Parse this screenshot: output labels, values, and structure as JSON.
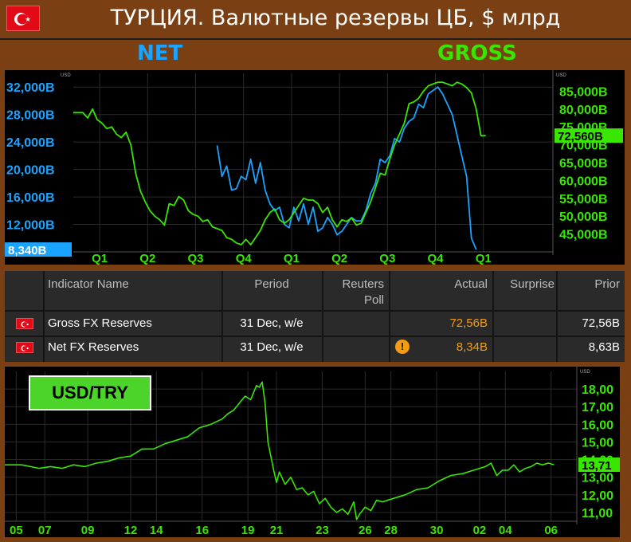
{
  "header": {
    "title": "ТУРЦИЯ. Валютные резервы ЦБ, $ млрд",
    "legend_net": "NET",
    "legend_gross": "GROSS",
    "flag_icon": "turkey-flag-icon"
  },
  "colors": {
    "net": "#1aa3ff",
    "gross": "#39e600",
    "usdtry": "#39e600",
    "actual": "#f39c12",
    "background": "#7a3f12"
  },
  "chart_data": [
    {
      "type": "line",
      "title": "ТУРЦИЯ. Валютные резервы ЦБ, $ млрд",
      "units_label": "USD",
      "x_tick_labels": [
        "Q1",
        "Q2",
        "Q3",
        "Q4",
        "Q1",
        "Q2",
        "Q3",
        "Q4",
        "Q1"
      ],
      "x_range": [
        0,
        100
      ],
      "x_ticks": [
        5.5,
        15.5,
        25.5,
        35.5,
        45.5,
        55.5,
        65.5,
        75.5,
        85.5
      ],
      "left_axis": {
        "ylim": [
          8000,
          34000
        ],
        "tick_values": [
          12000,
          16000,
          20000,
          24000,
          28000,
          32000
        ],
        "tick_labels": [
          "12,000B",
          "16,000B",
          "20,000B",
          "24,000B",
          "28,000B",
          "32,000B"
        ],
        "last_value_label": "8,340B",
        "last_value": 8340
      },
      "right_axis": {
        "ylim": [
          40000,
          90000
        ],
        "tick_values": [
          45000,
          50000,
          55000,
          60000,
          65000,
          70000,
          75000,
          80000,
          85000
        ],
        "tick_labels": [
          "45,000B",
          "50,000B",
          "55,000B",
          "60,000B",
          "65,000B",
          "70,000B",
          "75,000B",
          "80,000B",
          "85,000B"
        ],
        "last_value_label": "72,560B",
        "last_value": 72560
      },
      "series": [
        {
          "name": "NET",
          "axis": "left",
          "color": "#1aa3ff",
          "x": [
            30,
            31,
            32,
            33,
            34,
            35,
            36,
            37,
            38,
            39,
            40,
            41,
            42,
            43,
            44,
            45,
            46,
            47,
            48,
            49,
            50,
            51,
            52,
            53,
            54,
            55,
            56,
            57,
            58,
            59,
            60,
            61,
            62,
            63,
            64,
            65,
            66,
            67,
            68,
            69,
            70,
            71,
            72,
            73,
            74,
            75,
            76,
            77,
            78,
            79,
            80,
            81,
            82,
            83,
            84
          ],
          "y": [
            23500,
            19000,
            20500,
            17000,
            17200,
            19000,
            18500,
            21500,
            18000,
            21000,
            17000,
            15000,
            14000,
            14500,
            12000,
            11500,
            14500,
            12500,
            15000,
            12000,
            14500,
            11000,
            11500,
            13000,
            12000,
            10500,
            11000,
            12000,
            13000,
            12500,
            12500,
            14000,
            16500,
            18000,
            21500,
            21000,
            22000,
            24500,
            24000,
            26000,
            27000,
            27500,
            29500,
            29000,
            31000,
            31500,
            32000,
            31000,
            29500,
            28000,
            25000,
            22000,
            19000,
            10000,
            8340
          ]
        },
        {
          "name": "GROSS",
          "axis": "right",
          "color": "#39e600",
          "x": [
            0,
            2,
            3,
            4,
            5,
            6,
            7,
            8,
            9,
            10,
            11,
            12,
            13,
            14,
            15,
            16,
            17,
            18,
            19,
            20,
            21,
            22,
            23,
            24,
            25,
            26,
            27,
            28,
            29,
            30,
            31,
            32,
            33,
            34,
            35,
            36,
            37,
            38,
            39,
            40,
            41,
            42,
            43,
            44,
            45,
            46,
            47,
            48,
            49,
            50,
            51,
            52,
            53,
            54,
            55,
            56,
            57,
            58,
            59,
            60,
            61,
            62,
            63,
            64,
            65,
            66,
            67,
            68,
            69,
            70,
            71,
            72,
            73,
            74,
            75,
            76,
            77,
            78,
            79,
            80,
            81,
            82,
            83,
            84,
            85,
            86
          ],
          "y": [
            79000,
            79000,
            77500,
            80000,
            77000,
            76000,
            74500,
            75000,
            73000,
            72000,
            73500,
            70000,
            62000,
            57000,
            54000,
            51500,
            50000,
            49000,
            47500,
            53500,
            53000,
            55500,
            54500,
            51500,
            50500,
            50000,
            48500,
            49000,
            47000,
            46500,
            46000,
            44000,
            43500,
            42500,
            42000,
            43500,
            42000,
            44000,
            46000,
            49000,
            51000,
            52000,
            49000,
            48000,
            49000,
            51000,
            53000,
            55000,
            54500,
            54500,
            53500,
            51000,
            52500,
            49000,
            47000,
            49000,
            48500,
            49500,
            47500,
            48000,
            51000,
            54000,
            58000,
            62000,
            61500,
            66000,
            70000,
            73000,
            76000,
            81500,
            82000,
            83000,
            85000,
            86500,
            87000,
            87500,
            87500,
            87000,
            86500,
            87500,
            87000,
            86000,
            84500,
            80000,
            72500,
            72560
          ]
        }
      ]
    },
    {
      "type": "line",
      "title": "USD/TRY",
      "units_label": "USD",
      "x_tick_labels": [
        "05",
        "07",
        "09",
        "12",
        "14",
        "16",
        "19",
        "21",
        "23",
        "26",
        "28",
        "30",
        "02",
        "04",
        "06"
      ],
      "x_range": [
        0,
        100
      ],
      "x_ticks": [
        2,
        7,
        14.5,
        22,
        26.5,
        34.5,
        42.5,
        47.5,
        55.5,
        63,
        67.5,
        75.5,
        83,
        87.5,
        95.5
      ],
      "ylim": [
        10.5,
        19
      ],
      "tick_values": [
        11,
        12,
        13,
        14,
        15,
        16,
        17,
        18
      ],
      "tick_labels": [
        "11,00",
        "12,00",
        "13,00",
        "14,00",
        "15,00",
        "16,00",
        "17,00",
        "18,00"
      ],
      "last_value_label": "13,71",
      "last_value": 13.71,
      "series": [
        {
          "name": "USD/TRY",
          "color": "#39e600",
          "x": [
            0,
            3,
            6,
            8,
            10,
            12,
            14,
            16,
            18,
            20,
            22,
            24,
            26,
            28,
            30,
            32,
            34,
            36,
            38,
            39,
            40,
            41,
            42,
            43,
            44,
            44.5,
            45,
            45.5,
            46,
            47,
            47.5,
            48,
            49,
            50,
            51,
            52,
            53,
            54,
            55,
            56,
            57,
            58,
            59,
            60,
            61,
            61.5,
            62,
            63,
            64,
            65,
            66,
            68,
            70,
            72,
            74,
            76,
            78,
            80,
            82,
            83,
            84,
            85,
            86,
            87,
            88,
            89,
            90,
            91,
            92,
            93,
            94,
            95,
            96
          ],
          "y": [
            13.7,
            13.7,
            13.5,
            13.6,
            13.5,
            13.7,
            13.6,
            13.8,
            13.9,
            14.1,
            14.2,
            14.6,
            14.6,
            14.9,
            15.1,
            15.3,
            15.8,
            16.0,
            16.3,
            16.6,
            16.8,
            17.2,
            17.6,
            17.4,
            18.2,
            18.1,
            18.4,
            17.2,
            15.0,
            13.4,
            12.7,
            13.3,
            12.6,
            13.0,
            12.3,
            12.4,
            12.0,
            12.2,
            11.5,
            11.8,
            11.3,
            11.0,
            11.2,
            10.9,
            11.6,
            10.6,
            10.9,
            11.3,
            11.1,
            11.7,
            11.6,
            11.8,
            12.0,
            12.3,
            12.4,
            12.8,
            13.1,
            13.2,
            13.4,
            13.5,
            13.6,
            13.8,
            13.1,
            13.4,
            13.4,
            13.7,
            13.3,
            13.5,
            13.6,
            13.8,
            13.7,
            13.8,
            13.71
          ]
        }
      ]
    }
  ],
  "table": {
    "headers": {
      "indicator": "Indicator Name",
      "period": "Period",
      "reuters_poll": "Reuters\nPoll",
      "actual": "Actual",
      "surprise": "Surprise",
      "prior": "Prior"
    },
    "rows": [
      {
        "indicator": "Gross FX Reserves",
        "period": "31 Dec, w/e",
        "reuters_poll": "",
        "actual": "72,56B",
        "surprise": "",
        "prior": "72,56B",
        "warning": false
      },
      {
        "indicator": "Net FX Reserves",
        "period": "31 Dec, w/e",
        "reuters_poll": "",
        "actual": "8,34B",
        "surprise": "",
        "prior": "8,63B",
        "warning": true,
        "warning_icon": "warning-icon",
        "warning_symbol": "!"
      }
    ]
  }
}
